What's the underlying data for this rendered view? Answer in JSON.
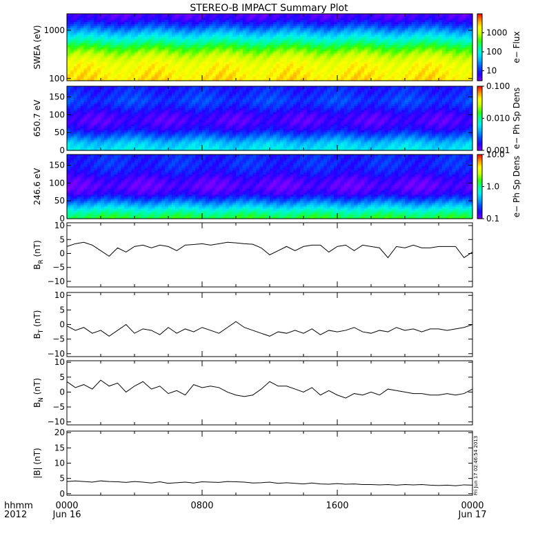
{
  "title": "STEREO-B IMPACT Summary Plot",
  "colors": {
    "background": "#ffffff",
    "axis": "#000000",
    "trace": "#000000",
    "colorscale": [
      "#7a00ff",
      "#2200ff",
      "#0050ff",
      "#00aaff",
      "#00f0f0",
      "#00ff90",
      "#30ff00",
      "#c8ff00",
      "#ffff00",
      "#ff9000",
      "#ff0000"
    ]
  },
  "x_axis": {
    "row_labels": [
      "hhmm",
      "2012"
    ],
    "ticks": [
      {
        "hhmm": "0000",
        "date": "Jun 16"
      },
      {
        "hhmm": "0800",
        "date": ""
      },
      {
        "hhmm": "1600",
        "date": ""
      },
      {
        "hhmm": "0000",
        "date": "Jun 17"
      }
    ]
  },
  "timestamp": "Fri Jun 17 02:46:54 2013",
  "chart_data": [
    {
      "type": "heatmap",
      "ylabel": "SWEA (eV)",
      "yscale": "log",
      "ylim": [
        90,
        2200
      ],
      "yticks": [
        {
          "label": "1000",
          "value": 1000
        },
        {
          "label": "100",
          "value": 100
        }
      ],
      "colorbar": {
        "label": "e− Flux",
        "scale": "log",
        "range": [
          3,
          10000
        ],
        "ticks": [
          {
            "label": "1000",
            "value": 1000
          },
          {
            "label": "100",
            "value": 100
          },
          {
            "label": "10",
            "value": 10
          }
        ]
      },
      "profile": [
        [
          100,
          0.82
        ],
        [
          200,
          0.78
        ],
        [
          300,
          0.7
        ],
        [
          400,
          0.62
        ],
        [
          500,
          0.54
        ],
        [
          600,
          0.47
        ],
        [
          800,
          0.36
        ],
        [
          1000,
          0.27
        ],
        [
          1300,
          0.17
        ],
        [
          1700,
          0.08
        ],
        [
          2200,
          0.04
        ]
      ]
    },
    {
      "type": "heatmap",
      "ylabel": "650.7 eV",
      "ylim": [
        0,
        180
      ],
      "yticks": [
        {
          "label": "150",
          "value": 150
        },
        {
          "label": "100",
          "value": 100
        },
        {
          "label": "50",
          "value": 50
        },
        {
          "label": "0",
          "value": 0
        }
      ],
      "colorbar": {
        "label": "e− Ph Sp Dens",
        "scale": "log",
        "range": [
          0.001,
          0.1
        ],
        "ticks": [
          {
            "label": "0.100",
            "value": 0.1
          },
          {
            "label": "0.010",
            "value": 0.01
          },
          {
            "label": "0.001",
            "value": 0.001
          }
        ]
      },
      "profile": [
        [
          0,
          0.4
        ],
        [
          20,
          0.34
        ],
        [
          40,
          0.22
        ],
        [
          60,
          0.1
        ],
        [
          80,
          0.05
        ],
        [
          100,
          0.07
        ],
        [
          120,
          0.14
        ],
        [
          140,
          0.18
        ],
        [
          160,
          0.15
        ],
        [
          180,
          0.13
        ]
      ]
    },
    {
      "type": "heatmap",
      "ylabel": "246.6 eV",
      "ylim": [
        0,
        180
      ],
      "yticks": [
        {
          "label": "150",
          "value": 150
        },
        {
          "label": "100",
          "value": 100
        },
        {
          "label": "50",
          "value": 50
        },
        {
          "label": "0",
          "value": 0
        }
      ],
      "colorbar": {
        "label": "e− Ph Sp Dens",
        "scale": "log",
        "range": [
          0.1,
          10
        ],
        "ticks": [
          {
            "label": "10.0",
            "value": 10
          },
          {
            "label": "1.0",
            "value": 1
          },
          {
            "label": "0.1",
            "value": 0.1
          }
        ]
      },
      "profile": [
        [
          0,
          0.58
        ],
        [
          15,
          0.5
        ],
        [
          30,
          0.38
        ],
        [
          50,
          0.22
        ],
        [
          70,
          0.08
        ],
        [
          90,
          0.03
        ],
        [
          110,
          0.06
        ],
        [
          130,
          0.12
        ],
        [
          150,
          0.15
        ],
        [
          180,
          0.14
        ]
      ]
    },
    {
      "type": "line",
      "ylabel": "B_R (nT)",
      "ylim": [
        -12,
        11
      ],
      "yticks": [
        {
          "label": "10",
          "value": 10
        },
        {
          "label": "5",
          "value": 5
        },
        {
          "label": "0",
          "value": 0
        },
        {
          "label": "−5",
          "value": -5
        },
        {
          "label": "−10",
          "value": -10
        }
      ],
      "x": [
        0,
        0.5,
        1,
        1.5,
        2,
        2.5,
        3,
        3.5,
        4,
        4.5,
        5,
        5.5,
        6,
        6.5,
        7,
        7.5,
        8,
        8.5,
        9,
        9.5,
        10,
        10.5,
        11,
        11.5,
        12,
        12.5,
        13,
        13.5,
        14,
        14.5,
        15,
        15.5,
        16,
        16.5,
        17,
        17.5,
        18,
        18.5,
        19,
        19.5,
        20,
        20.5,
        21,
        21.5,
        22,
        22.5,
        23,
        23.5,
        24
      ],
      "y": [
        2.5,
        3.5,
        4,
        3,
        1,
        -1,
        2,
        0.5,
        2.5,
        3,
        2,
        3,
        2.5,
        1,
        3,
        3.2,
        3.5,
        3,
        3.5,
        4,
        3.8,
        3.5,
        3.3,
        2,
        -0.5,
        1,
        2.5,
        1,
        2.5,
        3,
        3,
        0.5,
        2.5,
        3,
        1,
        3,
        2.5,
        2,
        -1.5,
        2.5,
        2,
        3,
        2,
        2,
        2.5,
        2.5,
        2.5,
        -1.5,
        0.5
      ]
    },
    {
      "type": "line",
      "ylabel": "B_T (nT)",
      "ylim": [
        -11,
        11
      ],
      "yticks": [
        {
          "label": "10",
          "value": 10
        },
        {
          "label": "5",
          "value": 5
        },
        {
          "label": "0",
          "value": 0
        },
        {
          "label": "−5",
          "value": -5
        },
        {
          "label": "−10",
          "value": -10
        }
      ],
      "x": [
        0,
        0.5,
        1,
        1.5,
        2,
        2.5,
        3,
        3.5,
        4,
        4.5,
        5,
        5.5,
        6,
        6.5,
        7,
        7.5,
        8,
        8.5,
        9,
        9.5,
        10,
        10.5,
        11,
        11.5,
        12,
        12.5,
        13,
        13.5,
        14,
        14.5,
        15,
        15.5,
        16,
        16.5,
        17,
        17.5,
        18,
        18.5,
        19,
        19.5,
        20,
        20.5,
        21,
        21.5,
        22,
        22.5,
        23,
        23.5,
        24
      ],
      "y": [
        -0.5,
        -2,
        -1,
        -3,
        -2,
        -4,
        -2,
        0,
        -3,
        -1.5,
        -2,
        -3.5,
        -1,
        -3,
        -1.5,
        -2.5,
        -1,
        -2,
        -3,
        -1,
        1,
        -1,
        -2,
        -3,
        -4,
        -2.5,
        -3,
        -2,
        -3,
        -1.5,
        -3.5,
        -2,
        -2.5,
        -2,
        -1,
        -2.5,
        -3,
        -2,
        -2.5,
        -1,
        -2,
        -1.5,
        -2.5,
        -1.5,
        -1.5,
        -2,
        -1.5,
        -1,
        0
      ]
    },
    {
      "type": "line",
      "ylabel": "B_N (nT)",
      "ylim": [
        -11,
        10.5
      ],
      "yticks": [
        {
          "label": "10",
          "value": 10
        },
        {
          "label": "5",
          "value": 5
        },
        {
          "label": "0",
          "value": 0
        },
        {
          "label": "−5",
          "value": -5
        },
        {
          "label": "−10",
          "value": -10
        }
      ],
      "x": [
        0,
        0.5,
        1,
        1.5,
        2,
        2.5,
        3,
        3.5,
        4,
        4.5,
        5,
        5.5,
        6,
        6.5,
        7,
        7.5,
        8,
        8.5,
        9,
        9.5,
        10,
        10.5,
        11,
        11.5,
        12,
        12.5,
        13,
        13.5,
        14,
        14.5,
        15,
        15.5,
        16,
        16.5,
        17,
        17.5,
        18,
        18.5,
        19,
        19.5,
        20,
        20.5,
        21,
        21.5,
        22,
        22.5,
        23,
        23.5,
        24
      ],
      "y": [
        3.5,
        1.5,
        2.5,
        1,
        4,
        2,
        3,
        0,
        2,
        3.5,
        1,
        2,
        -0.5,
        0.5,
        -1,
        2.5,
        1.5,
        2,
        1.5,
        0,
        -1,
        -1.5,
        -1,
        1,
        3.5,
        2,
        2,
        1,
        0,
        1.5,
        -1,
        0.5,
        -1,
        -2,
        -0.5,
        -1,
        0,
        -1,
        1,
        0.5,
        0,
        -0.5,
        -0.5,
        -1,
        -1,
        -0.5,
        -1,
        -0.5,
        1
      ]
    },
    {
      "type": "line",
      "ylabel": "|B| (nT)",
      "ylim": [
        -0.5,
        20.5
      ],
      "yticks": [
        {
          "label": "20",
          "value": 20
        },
        {
          "label": "15",
          "value": 15
        },
        {
          "label": "10",
          "value": 10
        },
        {
          "label": "5",
          "value": 5
        },
        {
          "label": "0",
          "value": 0
        }
      ],
      "x": [
        0,
        0.5,
        1,
        1.5,
        2,
        2.5,
        3,
        3.5,
        4,
        4.5,
        5,
        5.5,
        6,
        6.5,
        7,
        7.5,
        8,
        8.5,
        9,
        9.5,
        10,
        10.5,
        11,
        11.5,
        12,
        12.5,
        13,
        13.5,
        14,
        14.5,
        15,
        15.5,
        16,
        16.5,
        17,
        17.5,
        18,
        18.5,
        19,
        19.5,
        20,
        20.5,
        21,
        21.5,
        22,
        22.5,
        23,
        23.5,
        24
      ],
      "y": [
        4,
        4.2,
        4,
        3.8,
        4.2,
        4,
        3.9,
        3.7,
        4,
        3.8,
        3.5,
        3.9,
        3.4,
        3.6,
        3.8,
        3.5,
        3.9,
        3.8,
        3.7,
        4,
        3.9,
        3.8,
        3.5,
        3.6,
        3.8,
        3.4,
        3.6,
        3.4,
        3.2,
        3.5,
        3.2,
        3.1,
        3.3,
        3.1,
        3.2,
        3,
        3,
        2.9,
        3,
        2.8,
        3,
        2.9,
        3,
        2.8,
        2.7,
        2.8,
        2.6,
        2.9,
        2.8
      ]
    }
  ]
}
